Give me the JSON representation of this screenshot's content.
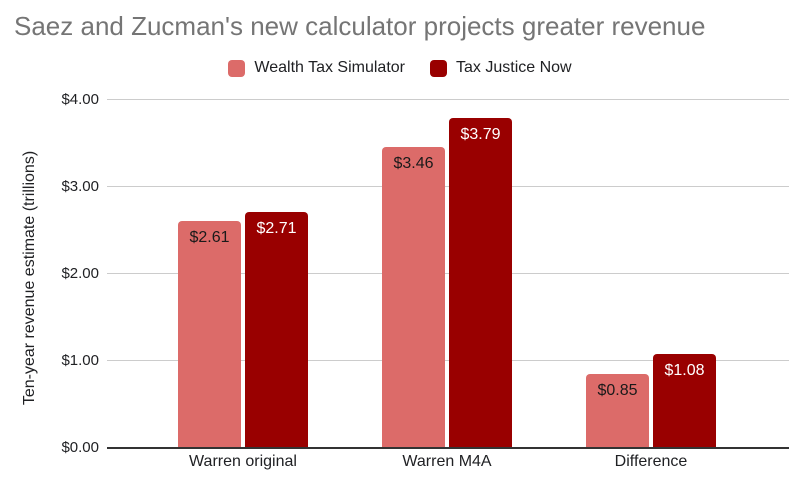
{
  "chart_data": {
    "type": "bar",
    "title": "Saez and Zucman's new calculator projects greater revenue",
    "ylabel": "Ten-year revenue estimate (trillions)",
    "xlabel": "",
    "categories": [
      "Warren original",
      "Warren M4A",
      "Difference"
    ],
    "series": [
      {
        "name": "Wealth Tax Simulator",
        "color": "#DC6B69",
        "label_color": "#1A1A1A",
        "values": [
          2.61,
          3.46,
          0.85
        ],
        "labels": [
          "$2.61",
          "$3.46",
          "$0.85"
        ]
      },
      {
        "name": "Tax Justice Now",
        "color": "#990000",
        "label_color": "#FFFFFF",
        "values": [
          2.71,
          3.79,
          1.08
        ],
        "labels": [
          "$2.71",
          "$3.79",
          "$1.08"
        ]
      }
    ],
    "ylim": [
      0,
      4
    ],
    "yticks": [
      {
        "value": 0,
        "label": "$0.00"
      },
      {
        "value": 1,
        "label": "$1.00"
      },
      {
        "value": 2,
        "label": "$2.00"
      },
      {
        "value": 3,
        "label": "$3.00"
      },
      {
        "value": 4,
        "label": "$4.00"
      }
    ],
    "grid": true,
    "legend_position": "top",
    "colors": {
      "gridline": "#CCCCCC",
      "axis_line": "#333333",
      "title_text": "#757575",
      "tick_text": "#202124",
      "background": "#FFFFFF"
    }
  }
}
